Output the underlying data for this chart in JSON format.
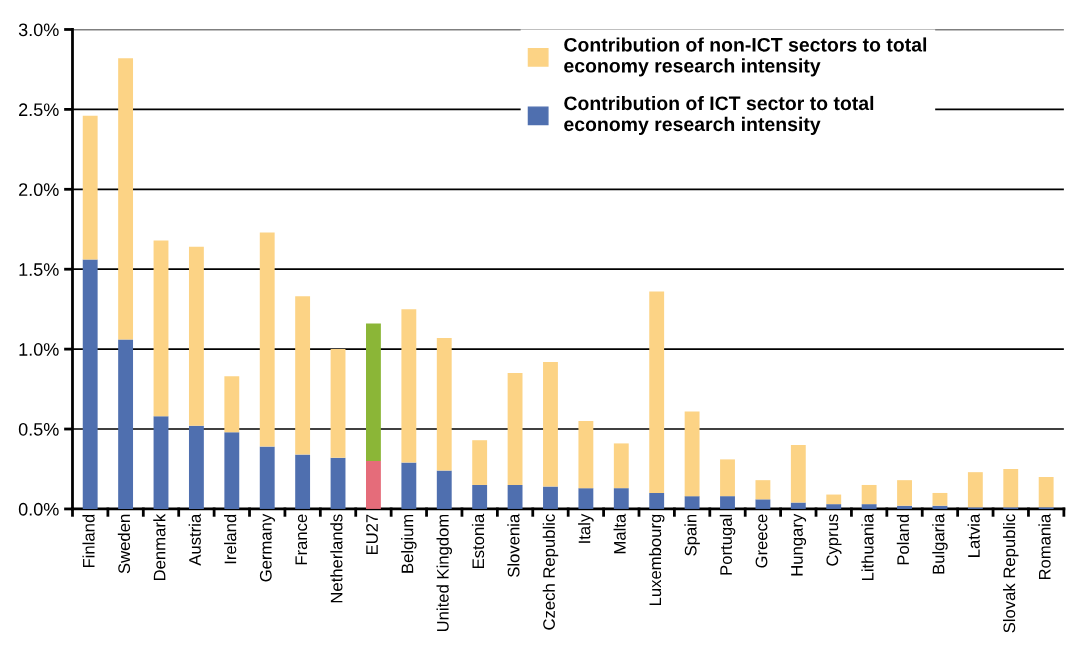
{
  "chart_data": {
    "type": "bar",
    "stacked": true,
    "categories": [
      "Finland",
      "Sweden",
      "Denmark",
      "Austria",
      "Ireland",
      "Germany",
      "France",
      "Netherlands",
      "EU27",
      "Belgium",
      "United Kingdom",
      "Estonia",
      "Slovenia",
      "Czech Republic",
      "Italy",
      "Malta",
      "Luxembourg",
      "Spain",
      "Portugal",
      "Greece",
      "Hungary",
      "Cyprus",
      "Lithuania",
      "Poland",
      "Bulgaria",
      "Latvia",
      "Slovak Republic",
      "Romania"
    ],
    "series": [
      {
        "name": "Contribution of ICT sector to total\neconomy research intensity",
        "color": "#4f6faf",
        "colors": [
          "#4f6faf",
          "#4f6faf",
          "#4f6faf",
          "#4f6faf",
          "#4f6faf",
          "#4f6faf",
          "#4f6faf",
          "#4f6faf",
          "#e56c7a",
          "#4f6faf",
          "#4f6faf",
          "#4f6faf",
          "#4f6faf",
          "#4f6faf",
          "#4f6faf",
          "#4f6faf",
          "#4f6faf",
          "#4f6faf",
          "#4f6faf",
          "#4f6faf",
          "#4f6faf",
          "#4f6faf",
          "#4f6faf",
          "#4f6faf",
          "#4f6faf",
          "#4f6faf",
          "#4f6faf",
          "#4f6faf"
        ],
        "values": [
          1.56,
          1.06,
          0.58,
          0.52,
          0.48,
          0.39,
          0.34,
          0.32,
          0.3,
          0.29,
          0.24,
          0.15,
          0.15,
          0.14,
          0.13,
          0.13,
          0.1,
          0.08,
          0.08,
          0.06,
          0.04,
          0.03,
          0.03,
          0.02,
          0.02,
          0.01,
          0.01,
          0.01
        ]
      },
      {
        "name": "Contribution of non-ICT sectors to total\neconomy research intensity",
        "color": "#fcd385",
        "colors": [
          "#fcd385",
          "#fcd385",
          "#fcd385",
          "#fcd385",
          "#fcd385",
          "#fcd385",
          "#fcd385",
          "#fcd385",
          "#8bb637",
          "#fcd385",
          "#fcd385",
          "#fcd385",
          "#fcd385",
          "#fcd385",
          "#fcd385",
          "#fcd385",
          "#fcd385",
          "#fcd385",
          "#fcd385",
          "#fcd385",
          "#fcd385",
          "#fcd385",
          "#fcd385",
          "#fcd385",
          "#fcd385",
          "#fcd385",
          "#fcd385",
          "#fcd385"
        ],
        "values": [
          0.9,
          1.76,
          1.1,
          1.12,
          0.35,
          1.34,
          0.99,
          0.68,
          0.86,
          0.96,
          0.83,
          0.28,
          0.7,
          0.78,
          0.42,
          0.28,
          1.26,
          0.53,
          0.23,
          0.12,
          0.36,
          0.06,
          0.12,
          0.16,
          0.08,
          0.22,
          0.24,
          0.19
        ]
      }
    ],
    "ylim": [
      0,
      3.0
    ],
    "yticks": [
      {
        "value": 0,
        "label": "0.0%"
      },
      {
        "value": 0.5,
        "label": "0.5%"
      },
      {
        "value": 1.0,
        "label": "1.0%"
      },
      {
        "value": 1.5,
        "label": "1.5%"
      },
      {
        "value": 2.0,
        "label": "2.0%"
      },
      {
        "value": 2.5,
        "label": "2.5%"
      },
      {
        "value": 3.0,
        "label": "3.0%"
      }
    ],
    "grid": "y",
    "legend": "top right"
  }
}
